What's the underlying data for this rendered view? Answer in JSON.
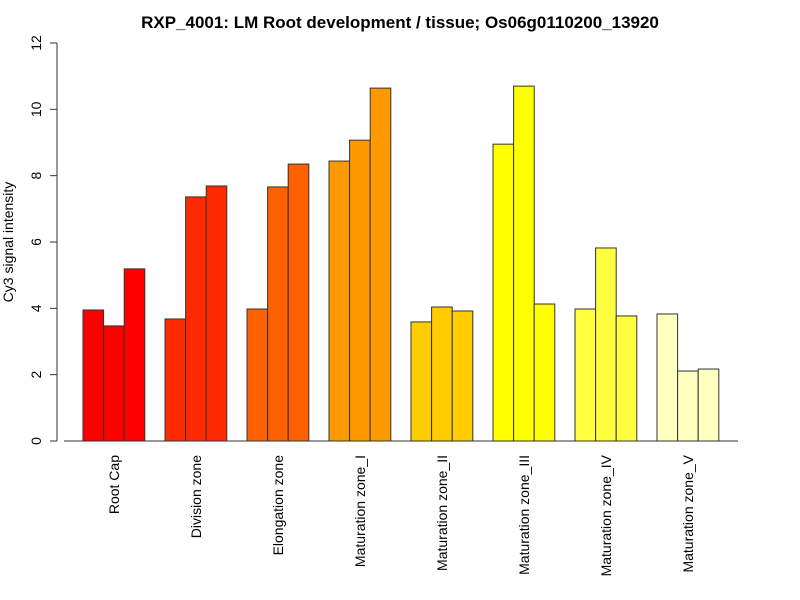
{
  "chart_data": {
    "type": "bar",
    "title": "RXP_4001: LM Root development / tissue; Os06g0110200_13920",
    "xlabel": "",
    "ylabel": "Cy3 signal intensity",
    "ylim": [
      0,
      12
    ],
    "yticks": [
      0,
      2,
      4,
      6,
      8,
      10,
      12
    ],
    "grid": false,
    "legend": "none",
    "categories": [
      "Root Cap",
      "Division zone",
      "Elongation zone",
      "Maturation zone_I",
      "Maturation zone_II",
      "Maturation zone_III",
      "Maturation zone_IV",
      "Maturation zone_V"
    ],
    "colors": [
      "#ff0000",
      "#ff2a00",
      "#ff6000",
      "#ff9900",
      "#ffcc00",
      "#ffff00",
      "#ffff40",
      "#ffffbf"
    ],
    "replicates_per_group": 3,
    "values": [
      [
        3.95,
        3.47,
        5.19
      ],
      [
        3.68,
        7.36,
        7.69
      ],
      [
        3.98,
        7.66,
        8.35
      ],
      [
        8.44,
        9.07,
        10.64
      ],
      [
        3.59,
        4.04,
        3.92
      ],
      [
        8.95,
        10.7,
        4.13
      ],
      [
        3.98,
        5.82,
        3.77
      ],
      [
        3.83,
        2.11,
        2.17
      ]
    ]
  }
}
